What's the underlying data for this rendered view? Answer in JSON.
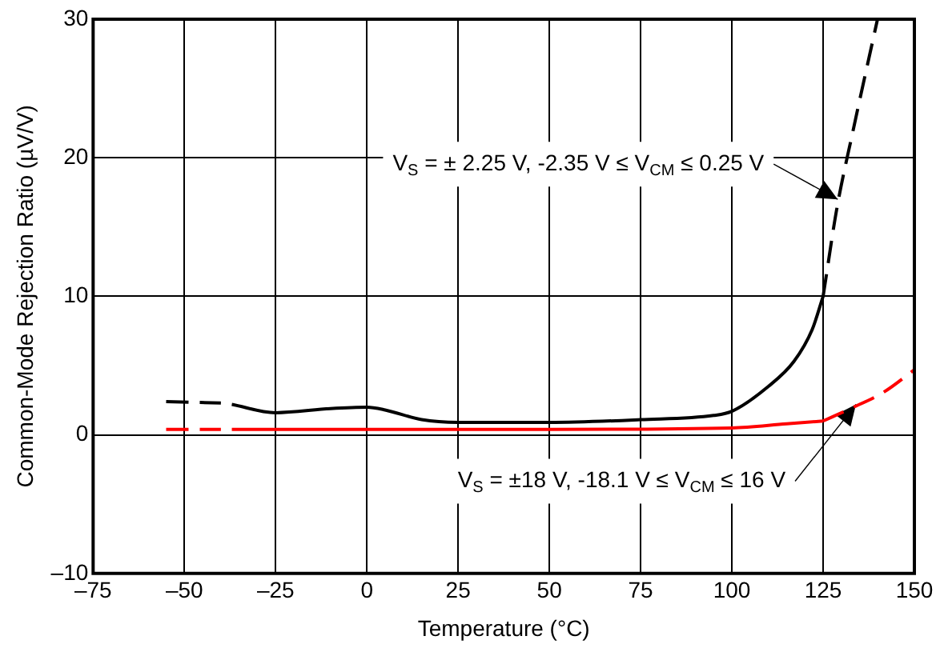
{
  "chart_data": {
    "type": "line",
    "xlabel": "Temperature (°C)",
    "ylabel": "Common-Mode Rejection Ratio (µV/V)",
    "xlim": [
      -75,
      150
    ],
    "xticks": [
      {
        "value": -75,
        "label": "–75"
      },
      {
        "value": -50,
        "label": "–50"
      },
      {
        "value": -25,
        "label": "–25"
      },
      0,
      25,
      50,
      75,
      100,
      125,
      150
    ],
    "ylim": [
      -10,
      30
    ],
    "yticks": [
      {
        "value": -10,
        "label": "–10"
      },
      0,
      10,
      20,
      30
    ],
    "grid": true,
    "legend": false,
    "marker": "none",
    "series": [
      {
        "color": "#000000",
        "line_style": "dashed",
        "x": [
          -55,
          -40
        ],
        "values": [
          2.4,
          2.3
        ]
      },
      {
        "color": "#000000",
        "line_style": "solid",
        "x": [
          -37,
          -25,
          -10,
          0,
          5,
          15,
          25,
          50,
          75,
          95,
          100,
          110,
          117,
          122,
          125
        ],
        "values": [
          2.2,
          1.6,
          1.9,
          2.0,
          1.8,
          1.1,
          0.9,
          0.9,
          1.1,
          1.4,
          1.7,
          3.5,
          5.3,
          7.6,
          10
        ]
      },
      {
        "color": "#000000",
        "line_style": "dashed",
        "x": [
          125,
          128.8,
          133.4,
          139.9
        ],
        "values": [
          10,
          16.4,
          22.2,
          30
        ]
      },
      {
        "color": "#ff0000",
        "line_style": "dashed",
        "x": [
          -55,
          -40
        ],
        "values": [
          0.4,
          0.4
        ]
      },
      {
        "color": "#ff0000",
        "line_style": "solid",
        "x": [
          -37,
          0,
          50,
          100,
          115,
          125
        ],
        "values": [
          0.4,
          0.4,
          0.4,
          0.5,
          0.8,
          1.0
        ]
      },
      {
        "color": "#ff0000",
        "line_style": "dashed",
        "x": [
          125,
          132.5,
          141.7,
          150
        ],
        "values": [
          1.0,
          1.9,
          3.1,
          4.7
        ]
      }
    ],
    "annotations": [
      {
        "text": "V$_{S}$ = ± 2.25 V, -2.35 V ≤ V$_{CM}$ ≤ 0.25 V",
        "x": 129,
        "y": 17
      },
      {
        "text": "V$_{S}$ = ±18 V, -18.1 V ≤ V$_{CM}$ ≤ 16 V",
        "x": 134,
        "y": 2.2
      }
    ]
  }
}
